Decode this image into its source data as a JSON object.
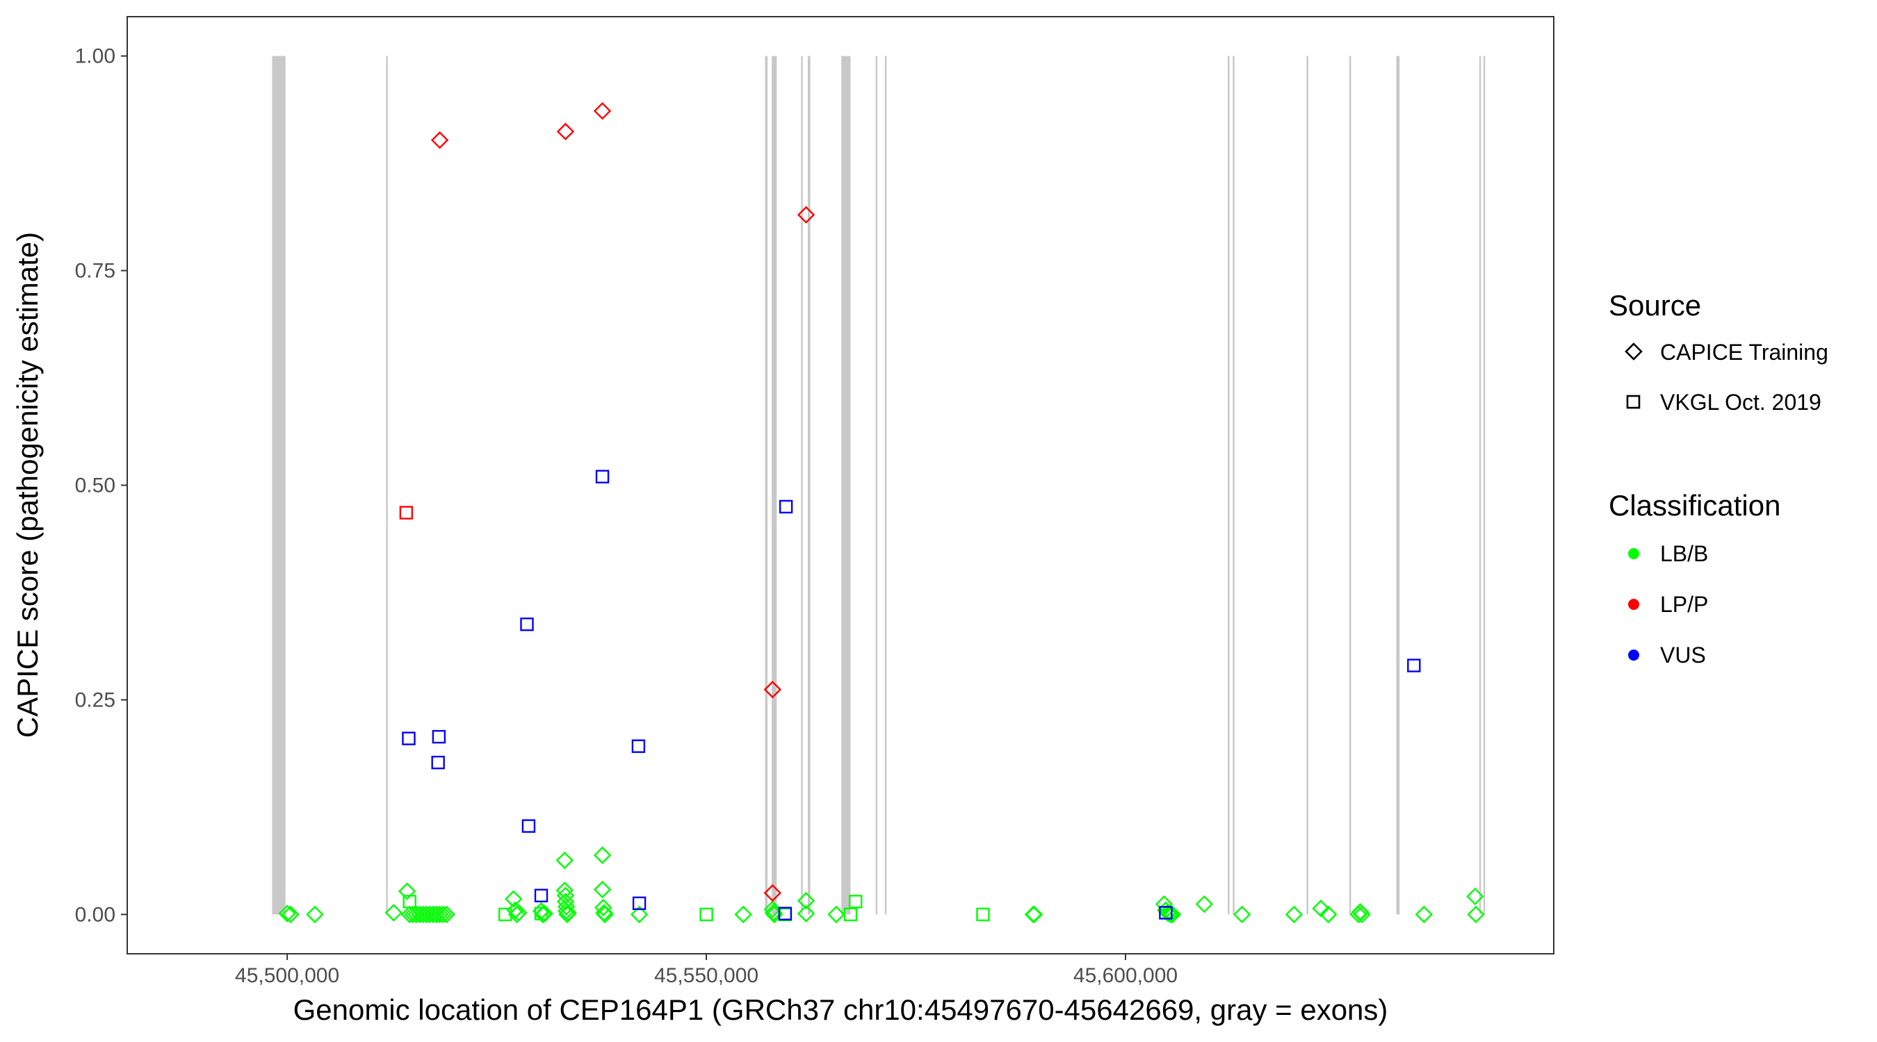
{
  "chart_data": {
    "type": "scatter",
    "xlabel": "Genomic location of CEP164P1 (GRCh37 chr10:45497670-45642669, gray = exons)",
    "ylabel": "CAPICE score (pathogenicity estimate)",
    "xlim": [
      45481000,
      45651000
    ],
    "ylim": [
      -0.045,
      1.045
    ],
    "x_ticks": [
      45500000,
      45550000,
      45600000
    ],
    "x_tick_labels": [
      "45,500,000",
      "45,550,000",
      "45,600,000"
    ],
    "y_ticks": [
      0.0,
      0.25,
      0.5,
      0.75,
      1.0
    ],
    "y_tick_labels": [
      "0.00",
      "0.25",
      "0.50",
      "0.75",
      "1.00"
    ],
    "grid": false,
    "exons": [
      [
        45498200,
        45499800
      ],
      [
        45511800,
        45512000
      ],
      [
        45557000,
        45557300
      ],
      [
        45557800,
        45558400
      ],
      [
        45561300,
        45561500
      ],
      [
        45562100,
        45562400
      ],
      [
        45566100,
        45567200
      ],
      [
        45570200,
        45570400
      ],
      [
        45571300,
        45571500
      ],
      [
        45612200,
        45612400
      ],
      [
        45612800,
        45613000
      ],
      [
        45621600,
        45621800
      ],
      [
        45626700,
        45626900
      ],
      [
        45632300,
        45632700
      ],
      [
        45642200,
        45642400
      ],
      [
        45642700,
        45642900
      ]
    ],
    "legend": {
      "placement": "right",
      "source_title": "Source",
      "source_entries": [
        {
          "label": "CAPICE Training",
          "shape": "diamond"
        },
        {
          "label": "VKGL Oct. 2019",
          "shape": "square"
        }
      ],
      "classification_title": "Classification",
      "classification_entries": [
        {
          "label": "LB/B",
          "color": "#00ff00"
        },
        {
          "label": "LP/P",
          "color": "#ff0000"
        },
        {
          "label": "VUS",
          "color": "#0000ff"
        }
      ]
    },
    "series": [
      {
        "name": "CAPICE Training",
        "shape": "diamond",
        "class": "LB/B",
        "color": "#00ff00",
        "points": [
          [
            45500000,
            0.001
          ],
          [
            45500400,
            0.0
          ],
          [
            45503300,
            0.0
          ],
          [
            45512700,
            0.002
          ],
          [
            45514300,
            0.027
          ],
          [
            45514600,
            0.0
          ],
          [
            45515000,
            0.0
          ],
          [
            45515400,
            0.0
          ],
          [
            45515800,
            0.0
          ],
          [
            45516200,
            0.0
          ],
          [
            45516600,
            0.0
          ],
          [
            45517000,
            0.0
          ],
          [
            45517400,
            0.0
          ],
          [
            45517800,
            0.0
          ],
          [
            45518200,
            0.0
          ],
          [
            45518600,
            0.0
          ],
          [
            45519000,
            0.0
          ],
          [
            45527000,
            0.018
          ],
          [
            45527200,
            0.005
          ],
          [
            45527400,
            0.0
          ],
          [
            45527600,
            0.002
          ],
          [
            45530300,
            0.004
          ],
          [
            45530500,
            0.0
          ],
          [
            45530700,
            0.001
          ],
          [
            45533100,
            0.063
          ],
          [
            45533100,
            0.028
          ],
          [
            45533200,
            0.022
          ],
          [
            45533200,
            0.015
          ],
          [
            45533300,
            0.009
          ],
          [
            45533300,
            0.004
          ],
          [
            45533400,
            0.0
          ],
          [
            45533500,
            0.002
          ],
          [
            45537600,
            0.069
          ],
          [
            45537600,
            0.029
          ],
          [
            45537700,
            0.008
          ],
          [
            45537800,
            0.002
          ],
          [
            45537900,
            0.0
          ],
          [
            45542000,
            0.0
          ],
          [
            45554400,
            0.0
          ],
          [
            45557900,
            0.006
          ],
          [
            45558000,
            0.002
          ],
          [
            45558100,
            0.0
          ],
          [
            45561900,
            0.016
          ],
          [
            45561900,
            0.001
          ],
          [
            45565500,
            0.0
          ],
          [
            45589000,
            0.0
          ],
          [
            45589100,
            0.0
          ],
          [
            45604600,
            0.012
          ],
          [
            45604800,
            0.005
          ],
          [
            45605000,
            0.002
          ],
          [
            45605200,
            0.001
          ],
          [
            45605400,
            0.0
          ],
          [
            45605600,
            0.0
          ],
          [
            45609400,
            0.012
          ],
          [
            45613900,
            0.0
          ],
          [
            45620100,
            0.0
          ],
          [
            45623300,
            0.007
          ],
          [
            45624200,
            0.0
          ],
          [
            45627800,
            0.0
          ],
          [
            45628000,
            0.003
          ],
          [
            45628200,
            0.0
          ],
          [
            45635600,
            0.0
          ],
          [
            45641700,
            0.021
          ],
          [
            45641800,
            0.0
          ]
        ]
      },
      {
        "name": "CAPICE Training",
        "shape": "diamond",
        "class": "LP/P",
        "color": "#ff0000",
        "points": [
          [
            45518200,
            0.902
          ],
          [
            45533200,
            0.912
          ],
          [
            45537600,
            0.936
          ],
          [
            45561900,
            0.815
          ],
          [
            45557900,
            0.262
          ],
          [
            45557900,
            0.025
          ]
        ]
      },
      {
        "name": "VKGL Oct. 2019",
        "shape": "square",
        "class": "LB/B",
        "color": "#00ff00",
        "points": [
          [
            45514600,
            0.015
          ],
          [
            45526000,
            0.0
          ],
          [
            45530300,
            0.001
          ],
          [
            45550000,
            0.0
          ],
          [
            45559400,
            0.0
          ],
          [
            45567200,
            0.0
          ],
          [
            45567800,
            0.015
          ],
          [
            45583000,
            0.0
          ]
        ]
      },
      {
        "name": "VKGL Oct. 2019",
        "shape": "square",
        "class": "LP/P",
        "color": "#ff0000",
        "points": [
          [
            45514200,
            0.468
          ]
        ]
      },
      {
        "name": "VKGL Oct. 2019",
        "shape": "square",
        "class": "VUS",
        "color": "#0000ff",
        "points": [
          [
            45514500,
            0.205
          ],
          [
            45518100,
            0.207
          ],
          [
            45518000,
            0.177
          ],
          [
            45537600,
            0.51
          ],
          [
            45528600,
            0.338
          ],
          [
            45528800,
            0.103
          ],
          [
            45530300,
            0.022
          ],
          [
            45542000,
            0.013
          ],
          [
            45541900,
            0.196
          ],
          [
            45559500,
            0.475
          ],
          [
            45559400,
            0.001
          ],
          [
            45604800,
            0.002
          ],
          [
            45634400,
            0.29
          ]
        ]
      }
    ]
  }
}
